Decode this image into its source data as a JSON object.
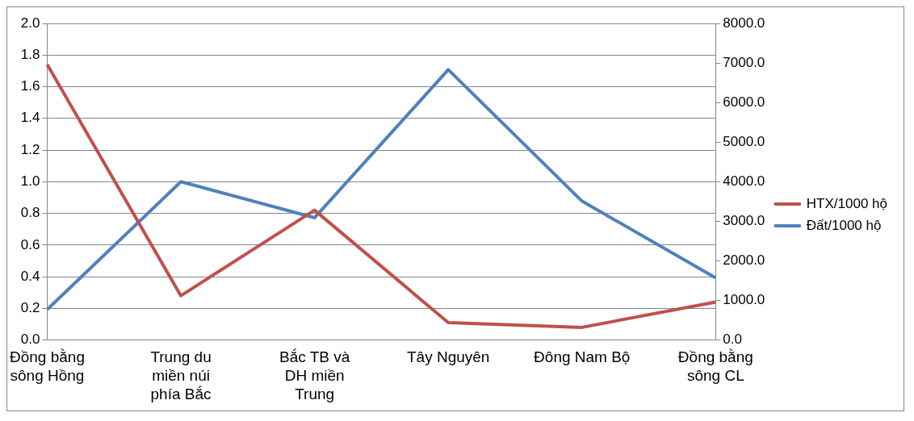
{
  "chart_data": {
    "type": "line",
    "categories": [
      "Đồng bằng sông Hồng",
      "Trung du miền núi phía Bắc",
      "Bắc TB và DH miền Trung",
      "Tây Nguyên",
      "Đông Nam Bộ",
      "Đồng bằng sông CL"
    ],
    "series": [
      {
        "name": "HTX/1000 hộ",
        "color": "#c0504d",
        "values": [
          1.74,
          0.28,
          0.82,
          0.11,
          0.08,
          0.24
        ]
      },
      {
        "name": "Đất/1000 hộ",
        "color": "#4f81bd",
        "axis": "y2",
        "values": [
          770,
          4000,
          3090,
          6830,
          3510,
          1570
        ]
      }
    ],
    "ylim": [
      0,
      2
    ],
    "yticks": [
      {
        "value": 0,
        "label": "0.0"
      },
      {
        "value": 0.2,
        "label": "0.2"
      },
      {
        "value": 0.4,
        "label": "0.4"
      },
      {
        "value": 0.6,
        "label": "0.6"
      },
      {
        "value": 0.8,
        "label": "0.8"
      },
      {
        "value": 1,
        "label": "1.0"
      },
      {
        "value": 1.2,
        "label": "1.2"
      },
      {
        "value": 1.4,
        "label": "1.4"
      },
      {
        "value": 1.6,
        "label": "1.6"
      },
      {
        "value": 1.8,
        "label": "1.8"
      },
      {
        "value": 2,
        "label": "2.0"
      }
    ],
    "y2lim": [
      0,
      8000
    ],
    "y2ticks": [
      {
        "value": 0,
        "label": "0.0"
      },
      {
        "value": 1000,
        "label": "1000.0"
      },
      {
        "value": 2000,
        "label": "2000.0"
      },
      {
        "value": 3000,
        "label": "3000.0"
      },
      {
        "value": 4000,
        "label": "4000.0"
      },
      {
        "value": 5000,
        "label": "5000.0"
      },
      {
        "value": 6000,
        "label": "6000.0"
      },
      {
        "value": 7000,
        "label": "7000.0"
      },
      {
        "value": 8000,
        "label": "8000.0"
      }
    ],
    "grid": "y",
    "legend": "right",
    "marker": "none",
    "line_style": "solid"
  }
}
